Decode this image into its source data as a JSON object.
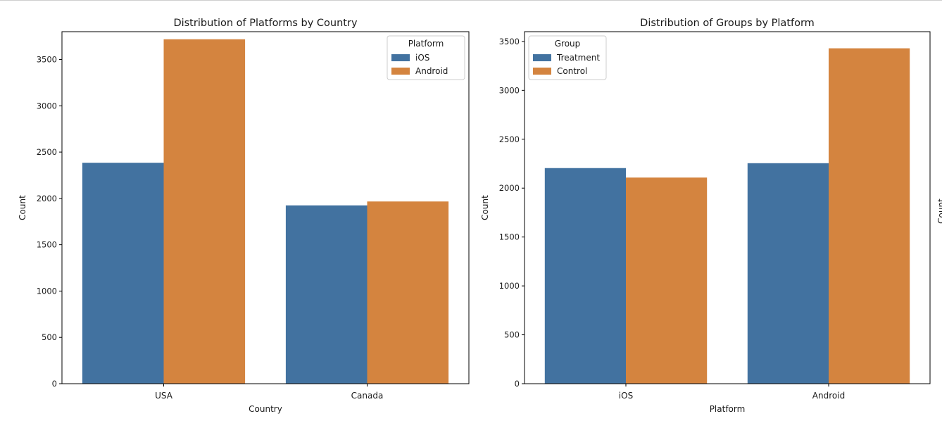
{
  "chart_data": [
    {
      "type": "bar",
      "title": "Distribution of Platforms by Country",
      "xlabel": "Country",
      "ylabel": "Count",
      "categories": [
        "USA",
        "Canada"
      ],
      "ylim": [
        0,
        3800
      ],
      "yticks": [
        0,
        500,
        1000,
        1500,
        2000,
        2500,
        3000,
        3500
      ],
      "grid": false,
      "legend": {
        "title": "Platform",
        "placement": "top-right"
      },
      "series": [
        {
          "name": "iOS",
          "color": "#4272a0",
          "values": [
            2385,
            1925
          ]
        },
        {
          "name": "Android",
          "color": "#d4843f",
          "values": [
            3718,
            1967
          ]
        }
      ]
    },
    {
      "type": "bar",
      "title": "Distribution of Groups by Platform",
      "xlabel": "Platform",
      "ylabel": "Count",
      "categories": [
        "iOS",
        "Android"
      ],
      "ylim": [
        0,
        3600
      ],
      "yticks": [
        0,
        500,
        1000,
        1500,
        2000,
        2500,
        3000,
        3500
      ],
      "grid": false,
      "legend": {
        "title": "Group",
        "placement": "top-left"
      },
      "series": [
        {
          "name": "Treatment",
          "color": "#4272a0",
          "values": [
            2205,
            2255
          ]
        },
        {
          "name": "Control",
          "color": "#d4843f",
          "values": [
            2108,
            3430
          ]
        }
      ]
    }
  ],
  "edge_fragment": {
    "text": "Count"
  }
}
